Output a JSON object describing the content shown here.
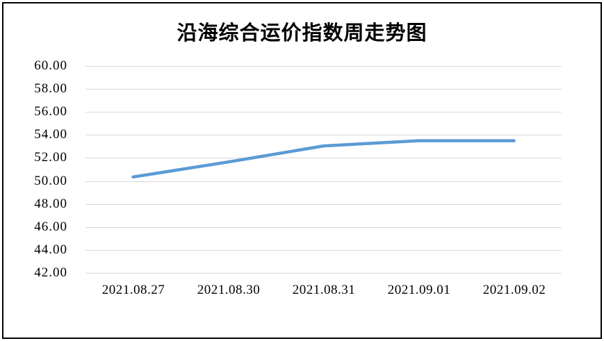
{
  "title": "沿海综合运价指数周走势图",
  "chart_data": {
    "type": "line",
    "title": "沿海综合运价指数周走势图",
    "categories": [
      "2021.08.27",
      "2021.08.30",
      "2021.08.31",
      "2021.09.01",
      "2021.09.02"
    ],
    "values": [
      50.35,
      51.65,
      53.05,
      53.5,
      53.5
    ],
    "ylim": [
      42,
      60
    ],
    "ytick_step": 2,
    "ytick_labels": [
      "60.00",
      "58.00",
      "56.00",
      "54.00",
      "52.00",
      "50.00",
      "48.00",
      "46.00",
      "44.00",
      "42.00"
    ],
    "xlabel": "",
    "ylabel": "",
    "grid": true,
    "legend": "none",
    "line_color": "#5b9bd5",
    "gridline_color": "#d9d9d9",
    "border_color": "#000000",
    "background_color": "#ffffff"
  }
}
